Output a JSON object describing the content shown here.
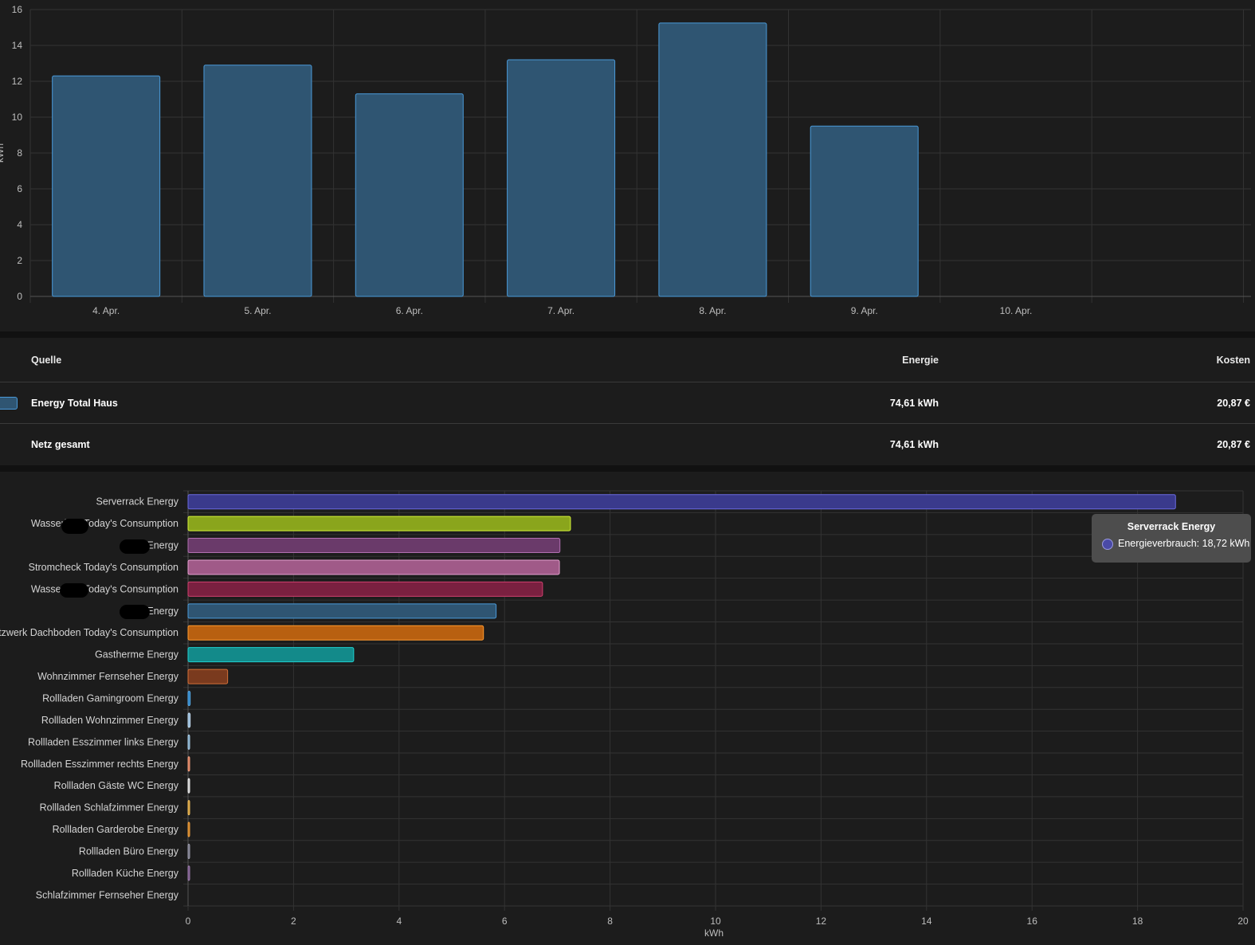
{
  "colors": {
    "background": "#1c1c1c",
    "grid": "#333333",
    "total_bar_fill": "#2f5572",
    "total_bar_border": "#4a9ad9"
  },
  "chart_data": [
    {
      "type": "bar",
      "categories": [
        "4. Apr.",
        "5. Apr.",
        "6. Apr.",
        "7. Apr.",
        "8. Apr.",
        "9. Apr.",
        "10. Apr."
      ],
      "values": [
        12.3,
        12.9,
        11.3,
        13.2,
        15.25,
        9.5,
        null
      ],
      "ylabel": "kWh",
      "ylim": [
        0,
        16
      ],
      "yticks": [
        "0",
        "2",
        "4",
        "6",
        "8",
        "10",
        "12",
        "14",
        "16"
      ],
      "grid": true
    },
    {
      "type": "bar",
      "orientation": "horizontal",
      "xlabel": "kWh",
      "xlim": [
        0,
        20
      ],
      "xticks": [
        "0",
        "2",
        "4",
        "6",
        "8",
        "10",
        "12",
        "14",
        "16",
        "18",
        "20"
      ],
      "grid": true,
      "categories": [
        "Serverrack Energy",
        "Wasserbett Today's Consumption",
        "Büro Energy",
        "Stromcheck Today's Consumption",
        "Wasserbett Today's Consumption",
        "Büro Energy",
        "Netzwerk Dachboden Today's Consumption",
        "Gastherme Energy",
        "Wohnzimmer Fernseher Energy",
        "Rollladen Gamingroom Energy",
        "Rollladen Wohnzimmer Energy",
        "Rollladen Esszimmer links Energy",
        "Rollladen Esszimmer rechts Energy",
        "Rollladen Gäste WC Energy",
        "Rollladen Schlafzimmer Energy",
        "Rollladen Garderobe Energy",
        "Rollladen Büro Energy",
        "Rollladen Küche Energy",
        "Schlafzimmer Fernseher Energy"
      ],
      "values": [
        18.72,
        7.25,
        7.05,
        7.04,
        6.72,
        5.84,
        5.6,
        3.14,
        0.75,
        0.04,
        0.04,
        0.03,
        0.03,
        0.03,
        0.03,
        0.03,
        0.02,
        0.02,
        0
      ],
      "bar_colors": [
        {
          "fill": "#3a3a8c",
          "stroke": "#6a6ae0"
        },
        {
          "fill": "#8aa51c",
          "stroke": "#d4f03a"
        },
        {
          "fill": "#6a3a6a",
          "stroke": "#b070b0"
        },
        {
          "fill": "#a05a88",
          "stroke": "#e6a0cf"
        },
        {
          "fill": "#7a2040",
          "stroke": "#d0406e"
        },
        {
          "fill": "#2f5572",
          "stroke": "#4a9ad9"
        },
        {
          "fill": "#b86010",
          "stroke": "#ff9a2e"
        },
        {
          "fill": "#138a8a",
          "stroke": "#1fd0d0"
        },
        {
          "fill": "#7a3a1e",
          "stroke": "#d47038"
        },
        {
          "fill": "#2a7ab8",
          "stroke": "#5ab0f0"
        },
        {
          "fill": "#8ab0d0",
          "stroke": "#c8e0f4"
        },
        {
          "fill": "#6a9ab8",
          "stroke": "#b0d0ea"
        },
        {
          "fill": "#d07050",
          "stroke": "#f0a080"
        },
        {
          "fill": "#c0c0c0",
          "stroke": "#f0f0f0"
        },
        {
          "fill": "#c89030",
          "stroke": "#f0c060"
        },
        {
          "fill": "#c07820",
          "stroke": "#f0a040"
        },
        {
          "fill": "#6a6a7a",
          "stroke": "#a0a0b0"
        },
        {
          "fill": "#6a4a7a",
          "stroke": "#a080b0"
        },
        {
          "fill": "#555555",
          "stroke": "#888888"
        }
      ]
    }
  ],
  "table": {
    "headers": {
      "source": "Quelle",
      "energy": "Energie",
      "cost": "Kosten"
    },
    "rows": [
      {
        "name": "Energy Total Haus",
        "energy": "74,61 kWh",
        "cost": "20,87 €"
      }
    ],
    "total": {
      "name": "Netz gesamt",
      "energy": "74,61 kWh",
      "cost": "20,87 €"
    }
  },
  "tooltip": {
    "title": "Serverrack Energy",
    "text": "Energieverbrauch: 18,72 kWh"
  }
}
